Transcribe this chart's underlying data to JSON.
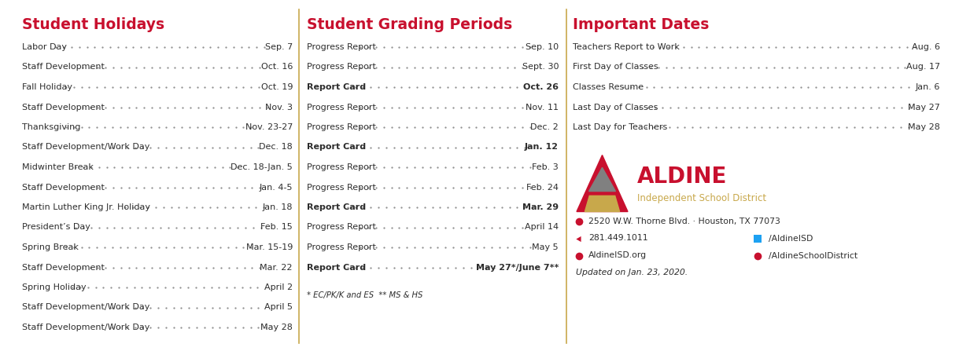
{
  "bg_color": "#ffffff",
  "divider_color": "#c8a84b",
  "header_color": "#c8102e",
  "dark_text": "#2d2d2d",
  "grey_text": "#555555",
  "col1_title": "Student Holidays",
  "col1_items": [
    [
      "Labor Day",
      "Sep. 7",
      false
    ],
    [
      "Staff Development",
      "Oct. 16",
      false
    ],
    [
      "Fall Holiday",
      "Oct. 19",
      false
    ],
    [
      "Staff Development",
      "Nov. 3",
      false
    ],
    [
      "Thanksgiving",
      "Nov. 23-27",
      false
    ],
    [
      "Staff Development/Work Day",
      "Dec. 18",
      false
    ],
    [
      "Midwinter Break",
      "Dec. 18-Jan. 5",
      false
    ],
    [
      "Staff Development",
      "Jan. 4-5",
      false
    ],
    [
      "Martin Luther King Jr. Holiday",
      "Jan. 18",
      false
    ],
    [
      "President’s Day",
      "Feb. 15",
      false
    ],
    [
      "Spring Break",
      "Mar. 15-19",
      false
    ],
    [
      "Staff Development",
      "Mar. 22",
      false
    ],
    [
      "Spring Holiday",
      "April 2",
      false
    ],
    [
      "Staff Development/Work Day",
      "April 5",
      false
    ],
    [
      "Staff Development/Work Day",
      "May 28",
      false
    ]
  ],
  "col2_title": "Student Grading Periods",
  "col2_items": [
    [
      "Progress Report",
      "Sep. 10",
      false
    ],
    [
      "Progress Report",
      "Sept. 30",
      false
    ],
    [
      "Report Card",
      "Oct. 26",
      true
    ],
    [
      "Progress Report",
      "Nov. 11",
      false
    ],
    [
      "Progress Report",
      "Dec. 2",
      false
    ],
    [
      "Report Card",
      "Jan. 12",
      true
    ],
    [
      "Progress Report",
      "Feb. 3",
      false
    ],
    [
      "Progress Report",
      "Feb. 24",
      false
    ],
    [
      "Report Card",
      "Mar. 29",
      true
    ],
    [
      "Progress Report",
      "April 14",
      false
    ],
    [
      "Progress Report",
      "May 5",
      false
    ],
    [
      "Report Card",
      "May 27*/June 7**",
      true
    ]
  ],
  "col2_footnote": "* EC/PK/K and ES  ** MS & HS",
  "col3_title": "Important Dates",
  "col3_items": [
    [
      "Teachers Report to Work",
      "Aug. 6"
    ],
    [
      "First Day of Classes",
      "Aug. 17"
    ],
    [
      "Classes Resume",
      "Jan. 6"
    ],
    [
      "Last Day of Classes",
      "May 27"
    ],
    [
      "Last Day for Teachers",
      "May 28"
    ]
  ],
  "logo_text_big": "ALDINE",
  "logo_text_small": "Independent School District",
  "logo_color": "#c8102e",
  "logo_sub_color": "#c8a84b",
  "logo_grey": "#808080",
  "logo_gold": "#c8a84b",
  "address_icon": "●",
  "address": "2520 W.W. Thorne Blvd. · Houston, TX 77073",
  "phone_icon": "☎",
  "phone": "281.449.1011",
  "twitter_icon": "ᵔ",
  "twitter": "/AldineISD",
  "web_icon": "●",
  "website": "AldineISD.org",
  "fb_icon": "●",
  "facebook": "/AldineSchoolDistrict",
  "updated": "Updated on Jan. 23, 2020."
}
